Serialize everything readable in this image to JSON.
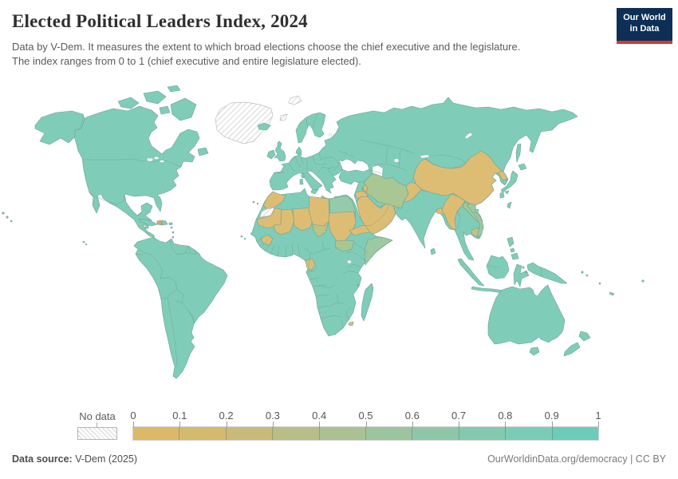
{
  "header": {
    "title": "Elected Political Leaders Index, 2024",
    "subtitle_lines": [
      "Data by V-Dem. It measures the extent to which broad elections choose the chief executive and the legislature.",
      "The index ranges from 0 to 1 (chief executive and entire legislature elected)."
    ]
  },
  "logo": {
    "line1": "Our World",
    "line2": "in Data",
    "bg_color": "#0d2f55",
    "accent_color": "#cf3a32"
  },
  "legend": {
    "no_data_label": "No data",
    "ticks": [
      "0",
      "0.1",
      "0.2",
      "0.3",
      "0.4",
      "0.5",
      "0.6",
      "0.7",
      "0.8",
      "0.9",
      "1"
    ],
    "segment_colors": [
      "#dcb868",
      "#d4ba6e",
      "#c8bb7a",
      "#b9be88",
      "#abc193",
      "#9cc49e",
      "#8ec7a8",
      "#83c9b0",
      "#7accb6",
      "#6cccba"
    ]
  },
  "map": {
    "colors": {
      "teal": "#7fcdb9",
      "tan": "#ddbd74",
      "sage": "#a8c793",
      "sage_tan": "#bcc384",
      "pale_teal": "#95cbac",
      "teal_sage": "#9cc9a0",
      "haiti": "#e2a455",
      "border": "#6f9d93",
      "no_data_hatch_line": "#cdcdcd"
    }
  },
  "footer": {
    "source_label": "Data source:",
    "source_value": " V-Dem (2025)",
    "credit_link": "OurWorldinData.org/democracy",
    "separator": " | ",
    "license": "CC BY"
  },
  "chart_data": {
    "type": "choropleth_map",
    "title": "Elected Political Leaders Index, 2024",
    "value_range": [
      0,
      1
    ],
    "legend_position": "bottom",
    "no_data_regions": [
      "Greenland",
      "Western Sahara",
      "Svalbard"
    ],
    "buckets": [
      {
        "range": "0-0.3",
        "color_family": "tan/gold",
        "countries": [
          "China",
          "Saudi Arabia",
          "Yemen",
          "Oman",
          "United Arab Emirates",
          "Qatar",
          "Kuwait",
          "Jordan",
          "Israel-Jordan area",
          "Syria",
          "Afghanistan",
          "Myanmar",
          "Bangladesh",
          "North Korea",
          "Haiti",
          "Morocco",
          "Mauritania",
          "Mali",
          "Niger",
          "Libya",
          "Sudan",
          "Eritrea",
          "Djibouti",
          "Guinea",
          "Gabon",
          "Eswatini"
        ]
      },
      {
        "range": "0.3-0.6",
        "color_family": "sage green",
        "countries": [
          "Iran",
          "Chad",
          "South Sudan",
          "Somalia",
          "Egypt",
          "Laos",
          "Vietnam",
          "Cambodia"
        ]
      },
      {
        "range": "0.7-1.0",
        "color_family": "teal",
        "countries": [
          "United States",
          "Canada",
          "Mexico",
          "Central America",
          "Brazil",
          "all of South America",
          "Europe",
          "Russia",
          "Kazakhstan",
          "Central Asia",
          "Turkey",
          "Iraq",
          "Pakistan",
          "India",
          "Japan",
          "South Korea",
          "Mongolia",
          "Thailand",
          "Indonesia",
          "Philippines",
          "Australia",
          "New Zealand",
          "most of Sub-Saharan Africa",
          "Madagascar"
        ]
      }
    ]
  }
}
